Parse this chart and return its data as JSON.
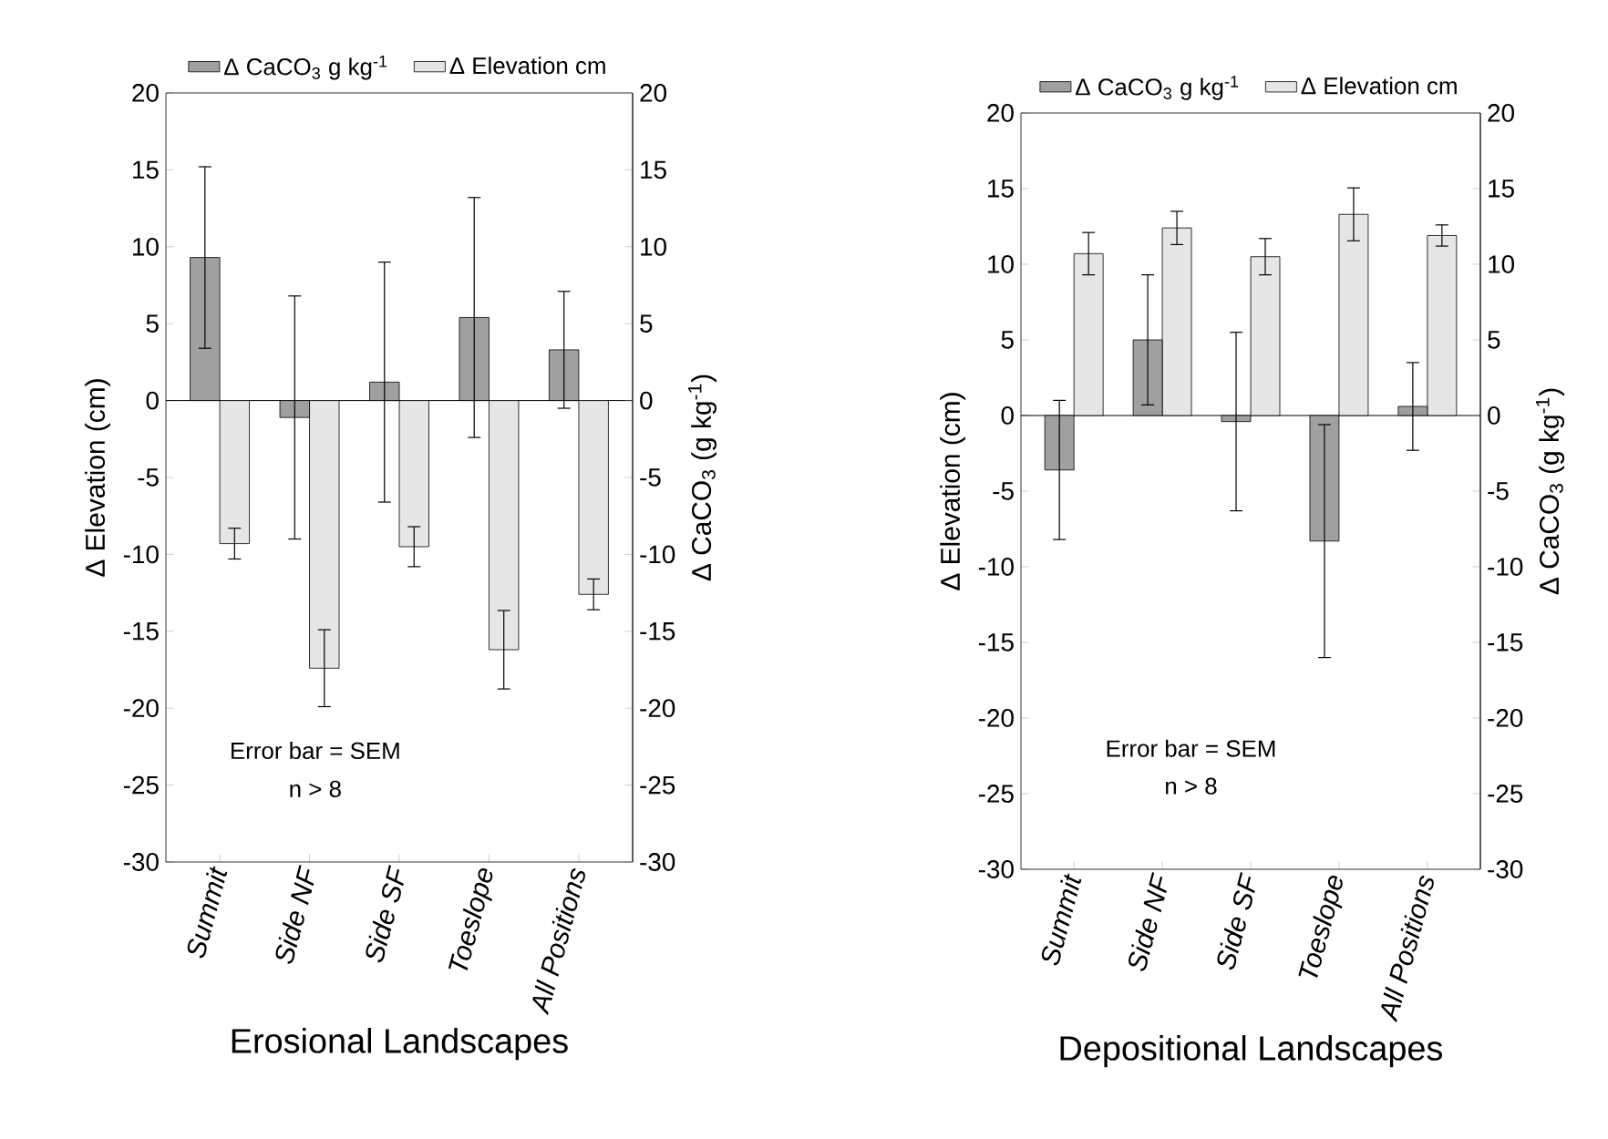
{
  "chart_data": [
    {
      "type": "bar",
      "xlabel": "Erosional  Landscapes",
      "ylabel": "Δ Elevation (cm)",
      "y2label": "Δ CaCO$_{3}$ (g kg$^{-1}$)",
      "categories": [
        "Summit",
        "Side NF",
        "Side SF",
        "Toeslope",
        "All Positions"
      ],
      "series": [
        {
          "name": "Δ CaCO$_{3}$ g kg$^{-1}$",
          "color": "#a0a0a0",
          "axis": "y2",
          "values": [
            9.3,
            -1.1,
            1.2,
            5.4,
            3.3
          ],
          "errors": [
            5.9,
            7.9,
            7.8,
            7.8,
            3.8
          ]
        },
        {
          "name": "Δ Elevation cm",
          "color": "#e6e6e6",
          "values": [
            -9.3,
            -17.4,
            -9.5,
            -16.2,
            -12.6
          ],
          "errors": [
            1.0,
            2.5,
            1.3,
            2.55,
            1.0
          ]
        }
      ],
      "ylim": [
        -30,
        20
      ],
      "yticks": [
        -30,
        -25,
        -20,
        -15,
        -10,
        -5,
        0,
        5,
        10,
        15,
        20
      ],
      "y2lim": [
        -30,
        20
      ],
      "y2ticks": [
        -30,
        -25,
        -20,
        -15,
        -10,
        -5,
        0,
        5,
        10,
        15,
        20
      ],
      "legend": "top",
      "annotations": [
        "Error bar = SEM",
        "n  >  8"
      ]
    },
    {
      "type": "bar",
      "xlabel": "Depositional     Landscapes",
      "ylabel": "Δ Elevation (cm)",
      "y2label": "Δ CaCO$_{3}$ (g kg$^{-1}$)",
      "categories": [
        "Summit",
        "Side NF",
        "Side SF",
        "Toeslope",
        "All Positions"
      ],
      "series": [
        {
          "name": "Δ CaCO$_{3}$ g kg$^{-1}$",
          "color": "#a0a0a0",
          "axis": "y2",
          "values": [
            -3.6,
            5.0,
            -0.4,
            -8.3,
            0.6
          ],
          "errors": [
            4.6,
            4.3,
            5.9,
            7.7,
            2.9
          ]
        },
        {
          "name": "Δ Elevation cm",
          "color": "#e6e6e6",
          "values": [
            10.7,
            12.4,
            10.5,
            13.3,
            11.9
          ],
          "errors": [
            1.4,
            1.1,
            1.2,
            1.75,
            0.7
          ]
        }
      ],
      "ylim": [
        -30,
        20
      ],
      "yticks": [
        -30,
        -25,
        -20,
        -15,
        -10,
        -5,
        0,
        5,
        10,
        15,
        20
      ],
      "y2lim": [
        -30,
        20
      ],
      "y2ticks": [
        -30,
        -25,
        -20,
        -15,
        -10,
        -5,
        0,
        5,
        10,
        15,
        20
      ],
      "legend": "top",
      "annotations": [
        "Error bar = SEM",
        "n  >  8"
      ]
    }
  ]
}
